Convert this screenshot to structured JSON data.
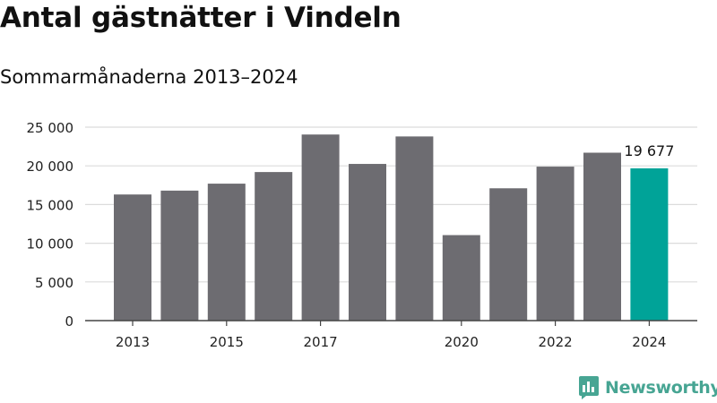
{
  "title": "Antal gästnätter i Vindeln",
  "subtitle": "Sommarmånaderna 2013–2024",
  "logo_text": "Newsworthy",
  "colors": {
    "bar": "#6d6c71",
    "highlight": "#00a398",
    "gridline": "#dcdcdc",
    "axis": "#444444",
    "brand": "#47a593"
  },
  "chart_data": {
    "type": "bar",
    "title": "Antal gästnätter i Vindeln",
    "subtitle": "Sommarmånaderna 2013–2024",
    "xlabel": "",
    "ylabel": "",
    "categories": [
      "2013",
      "2014",
      "2015",
      "2016",
      "2017",
      "2018",
      "2019",
      "2020",
      "2021",
      "2022",
      "2023",
      "2024"
    ],
    "values": [
      16300,
      16800,
      17700,
      19200,
      24050,
      20250,
      23800,
      11050,
      17100,
      19900,
      21700,
      19677
    ],
    "x_tick_labels": [
      "2013",
      "2015",
      "2017",
      "2020",
      "2022",
      "2024"
    ],
    "y_ticks": [
      0,
      5000,
      10000,
      15000,
      20000,
      25000
    ],
    "y_tick_labels": [
      "0",
      "5 000",
      "10 000",
      "15 000",
      "20 000",
      "25 000"
    ],
    "ylim": [
      0,
      25000
    ],
    "grid": true,
    "legend": "none",
    "highlight_category": "2024",
    "data_labels": [
      {
        "category": "2024",
        "text": "19 677"
      }
    ]
  }
}
